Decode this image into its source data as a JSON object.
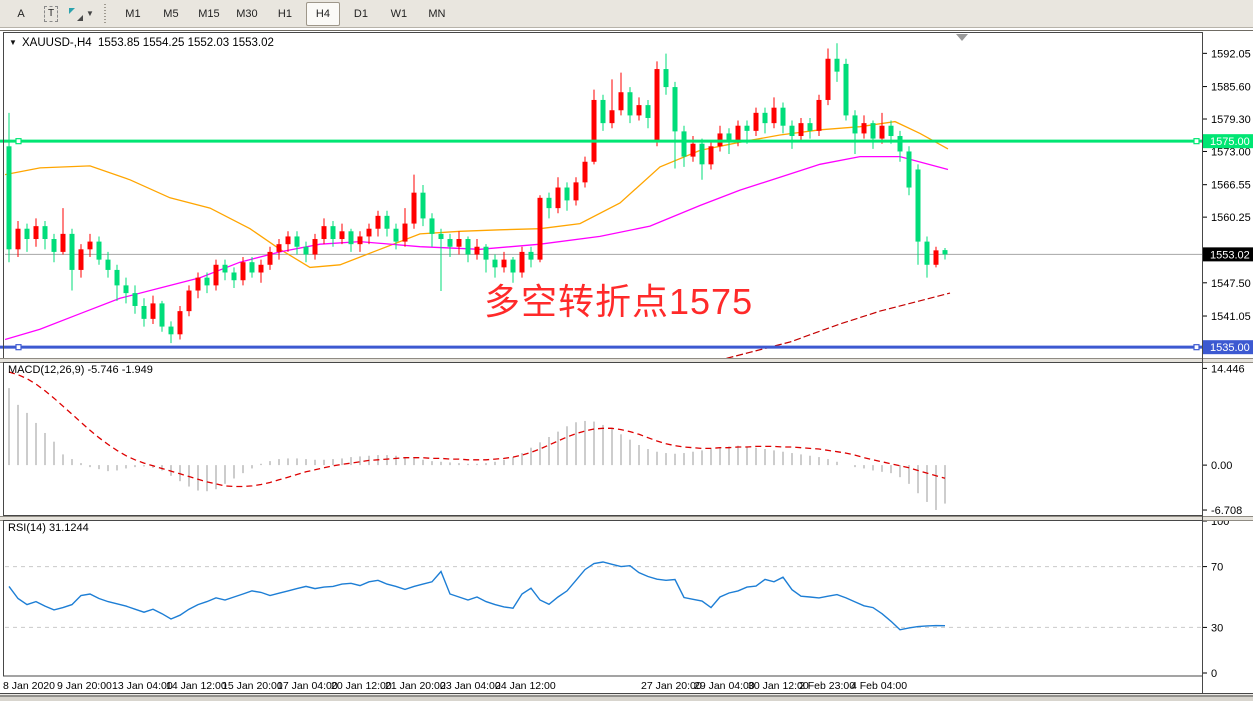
{
  "toolbar": {
    "buttons_left": [
      {
        "label": "A"
      },
      {
        "label": "T"
      }
    ],
    "timeframes": [
      "M1",
      "M5",
      "M15",
      "M30",
      "H1",
      "H4",
      "D1",
      "W1",
      "MN"
    ],
    "active_timeframe": "H4"
  },
  "header": {
    "collapse_icon": "▼",
    "title": "XAUUSD-,H4  1553.85 1554.25 1552.03 1553.02"
  },
  "annotation": {
    "text": "多空转折点1575"
  },
  "colors": {
    "bull": "#ff0000",
    "bear": "#00dd7a",
    "hline_green": "#00e673",
    "hline_blue": "#3c59d1",
    "current_price_line": "#a6a6a6",
    "ma_orange": "#ffa500",
    "ma_magenta": "#ff00ff",
    "ma_darkred": "#c40000",
    "macd_hist": "#ababab",
    "macd_signal": "#dd0000",
    "rsi_line": "#1d7ed5",
    "rsi_level": "#c9c9c9",
    "tag_black": "#000000",
    "annotation": "#ff2a2a",
    "marker_gray": "#9a9a9a"
  },
  "chart_data": {
    "type": "candlestick+indicators",
    "symbol": "XAUUSD-",
    "timeframe": "H4",
    "ohlc_header": {
      "open": "1553.85",
      "high": "1554.25",
      "low": "1552.03",
      "close": "1553.02"
    },
    "main": {
      "x0": 9,
      "dx": 9,
      "ylim": [
        1532.9,
        1596.0
      ],
      "axis_ticks": [
        "1592.05",
        "1585.60",
        "1579.30",
        "1573.00",
        "1566.55",
        "1560.25",
        "1547.50",
        "1541.05"
      ],
      "hline_green": {
        "price": 1575.0,
        "label": "1575.00"
      },
      "hline_blue": {
        "price": 1535.0,
        "label": "1535.00"
      },
      "current_price": {
        "price": 1553.02,
        "label": "1553.02"
      },
      "shift_marker_x": 962,
      "candles": [
        [
          1574,
          1580.5,
          1551.5,
          1554
        ],
        [
          1554,
          1559.5,
          1552.5,
          1558
        ],
        [
          1558,
          1559,
          1553.5,
          1556
        ],
        [
          1556,
          1560,
          1554.5,
          1558.5
        ],
        [
          1558.5,
          1559.5,
          1554,
          1556
        ],
        [
          1556,
          1557,
          1551.5,
          1553.5
        ],
        [
          1553.5,
          1562,
          1553,
          1557
        ],
        [
          1557,
          1558,
          1546,
          1550
        ],
        [
          1550,
          1555,
          1548.5,
          1554
        ],
        [
          1554,
          1557,
          1552.5,
          1555.5
        ],
        [
          1555.5,
          1556.5,
          1551,
          1552
        ],
        [
          1552,
          1553.5,
          1548.5,
          1550
        ],
        [
          1550,
          1551,
          1544,
          1547
        ],
        [
          1547,
          1548.5,
          1543.5,
          1545.5
        ],
        [
          1545.5,
          1547,
          1541.5,
          1543
        ],
        [
          1543,
          1544.5,
          1539,
          1540.5
        ],
        [
          1540.5,
          1545,
          1539.5,
          1543.5
        ],
        [
          1543.5,
          1544,
          1538,
          1539
        ],
        [
          1539,
          1540,
          1535.8,
          1537.5
        ],
        [
          1537.5,
          1543,
          1536.5,
          1542
        ],
        [
          1542,
          1547,
          1541,
          1546
        ],
        [
          1546,
          1549.5,
          1544.5,
          1548.5
        ],
        [
          1548.5,
          1549.5,
          1545.5,
          1547
        ],
        [
          1547,
          1552,
          1546,
          1551
        ],
        [
          1551,
          1552,
          1548,
          1549.5
        ],
        [
          1549.5,
          1550.5,
          1546.5,
          1548
        ],
        [
          1548,
          1552.5,
          1547,
          1551.5
        ],
        [
          1551.5,
          1552.5,
          1548.5,
          1549.5
        ],
        [
          1549.5,
          1552,
          1547.5,
          1551
        ],
        [
          1551,
          1554.5,
          1550,
          1553.5
        ],
        [
          1553.5,
          1556,
          1552,
          1555
        ],
        [
          1555,
          1557.5,
          1553.5,
          1556.5
        ],
        [
          1556.5,
          1557.5,
          1553,
          1554.5
        ],
        [
          1554.5,
          1555.5,
          1551.5,
          1553
        ],
        [
          1553,
          1557,
          1552,
          1556
        ],
        [
          1556,
          1560,
          1555,
          1558.5
        ],
        [
          1558.5,
          1559.5,
          1554.5,
          1556
        ],
        [
          1556,
          1559,
          1555,
          1557.5
        ],
        [
          1557.5,
          1558,
          1553.5,
          1555
        ],
        [
          1555,
          1557.5,
          1553.5,
          1556.5
        ],
        [
          1556.5,
          1559,
          1555,
          1558
        ],
        [
          1558,
          1561.5,
          1556.5,
          1560.5
        ],
        [
          1560.5,
          1561.5,
          1556.5,
          1558
        ],
        [
          1558,
          1559,
          1554,
          1555.5
        ],
        [
          1555.5,
          1562,
          1554.5,
          1559
        ],
        [
          1559,
          1568.5,
          1558,
          1565
        ],
        [
          1565,
          1566.5,
          1558.5,
          1560
        ],
        [
          1560,
          1561,
          1554.5,
          1557
        ],
        [
          1557,
          1558,
          1545.9,
          1556
        ],
        [
          1556,
          1557,
          1552.5,
          1554.5
        ],
        [
          1554.5,
          1557.5,
          1553,
          1556
        ],
        [
          1556,
          1556.5,
          1551.5,
          1553
        ],
        [
          1553,
          1556,
          1552,
          1554.5
        ],
        [
          1554.5,
          1555,
          1549.5,
          1552
        ],
        [
          1552,
          1553,
          1548.5,
          1550.5
        ],
        [
          1550.5,
          1553.5,
          1549.5,
          1552
        ],
        [
          1552,
          1552.5,
          1547.5,
          1549.5
        ],
        [
          1549.5,
          1554.5,
          1548.5,
          1553.5
        ],
        [
          1553.5,
          1554.5,
          1550.5,
          1552
        ],
        [
          1552,
          1564.5,
          1551.5,
          1564
        ],
        [
          1564,
          1565,
          1560,
          1562
        ],
        [
          1562,
          1568,
          1561,
          1566
        ],
        [
          1566,
          1567,
          1561.5,
          1563.5
        ],
        [
          1563.5,
          1568,
          1562.5,
          1567
        ],
        [
          1567,
          1572,
          1566,
          1571
        ],
        [
          1571,
          1585,
          1570.5,
          1583
        ],
        [
          1583,
          1584,
          1577,
          1578.5
        ],
        [
          1578.5,
          1587,
          1577.5,
          1581
        ],
        [
          1581,
          1588.3,
          1580,
          1584.5
        ],
        [
          1584.5,
          1585.5,
          1578.5,
          1580
        ],
        [
          1580,
          1583.5,
          1579,
          1582
        ],
        [
          1582,
          1583,
          1577.5,
          1579.5
        ],
        [
          1575,
          1590.5,
          1574,
          1589
        ],
        [
          1589,
          1592,
          1584,
          1585.5
        ],
        [
          1585.5,
          1586.5,
          1569.7,
          1576.9
        ],
        [
          1576.9,
          1578,
          1570,
          1572
        ],
        [
          1572,
          1576,
          1571,
          1574.5
        ],
        [
          1574.5,
          1575.5,
          1567.5,
          1570.5
        ],
        [
          1570.5,
          1575,
          1569.5,
          1574
        ],
        [
          1574,
          1578,
          1573,
          1576.5
        ],
        [
          1576.5,
          1577.5,
          1572.5,
          1575
        ],
        [
          1575,
          1579,
          1574,
          1578
        ],
        [
          1578,
          1579,
          1574.5,
          1577
        ],
        [
          1577,
          1581.5,
          1576,
          1580.5
        ],
        [
          1580.5,
          1581.5,
          1576.5,
          1578.5
        ],
        [
          1578.5,
          1583.5,
          1577.5,
          1581.5
        ],
        [
          1581.5,
          1582.5,
          1576.5,
          1578
        ],
        [
          1578,
          1579,
          1573.5,
          1576
        ],
        [
          1576,
          1579.5,
          1575,
          1578.5
        ],
        [
          1578.5,
          1579.5,
          1575.5,
          1577
        ],
        [
          1577,
          1584,
          1576,
          1583
        ],
        [
          1583,
          1593,
          1582,
          1591
        ],
        [
          1591,
          1594,
          1586.5,
          1588.5
        ],
        [
          1590,
          1591,
          1579,
          1580
        ],
        [
          1580,
          1581,
          1572.5,
          1576.5
        ],
        [
          1576.5,
          1580,
          1575.5,
          1578.5
        ],
        [
          1578.5,
          1579,
          1573.5,
          1575.5
        ],
        [
          1575.5,
          1580.5,
          1574.5,
          1578
        ],
        [
          1578,
          1579,
          1574.5,
          1576
        ],
        [
          1576,
          1577,
          1571,
          1573
        ],
        [
          1573,
          1574,
          1564.5,
          1566
        ],
        [
          1569.5,
          1570.5,
          1551,
          1555.5
        ],
        [
          1555.5,
          1556.5,
          1548.5,
          1551
        ],
        [
          1551,
          1554.5,
          1550.5,
          1553.8
        ],
        [
          1553.85,
          1554.25,
          1552.03,
          1553.02
        ]
      ],
      "ma_orange": [
        [
          5,
          1568.5
        ],
        [
          40,
          1569.8
        ],
        [
          90,
          1570.2
        ],
        [
          130,
          1567.5
        ],
        [
          170,
          1564
        ],
        [
          210,
          1562
        ],
        [
          250,
          1558
        ],
        [
          280,
          1554
        ],
        [
          310,
          1550.5
        ],
        [
          340,
          1551
        ],
        [
          380,
          1554
        ],
        [
          420,
          1557
        ],
        [
          460,
          1557.5
        ],
        [
          500,
          1557.8
        ],
        [
          540,
          1558
        ],
        [
          580,
          1559
        ],
        [
          620,
          1563
        ],
        [
          660,
          1570
        ],
        [
          700,
          1573.2
        ],
        [
          740,
          1574.8
        ],
        [
          780,
          1576.2
        ],
        [
          820,
          1577.2
        ],
        [
          860,
          1577.8
        ],
        [
          895,
          1578.8
        ],
        [
          920,
          1576.5
        ],
        [
          948,
          1573.5
        ]
      ],
      "ma_magenta": [
        [
          5,
          1536.5
        ],
        [
          40,
          1538.5
        ],
        [
          80,
          1541.5
        ],
        [
          120,
          1544.5
        ],
        [
          160,
          1546.5
        ],
        [
          200,
          1548.5
        ],
        [
          240,
          1551.5
        ],
        [
          280,
          1553.5
        ],
        [
          320,
          1555
        ],
        [
          360,
          1555.5
        ],
        [
          420,
          1554.5
        ],
        [
          480,
          1554
        ],
        [
          540,
          1555
        ],
        [
          600,
          1556.5
        ],
        [
          650,
          1558.5
        ],
        [
          700,
          1562.5
        ],
        [
          740,
          1565.5
        ],
        [
          780,
          1568
        ],
        [
          820,
          1570.5
        ],
        [
          860,
          1572
        ],
        [
          900,
          1572
        ],
        [
          948,
          1569.5
        ]
      ],
      "ma_darkred": [
        [
          640,
          1528
        ],
        [
          700,
          1531.5
        ],
        [
          750,
          1534
        ],
        [
          790,
          1536
        ],
        [
          840,
          1539.5
        ],
        [
          880,
          1542
        ],
        [
          920,
          1544
        ],
        [
          950,
          1545.5
        ]
      ]
    },
    "macd": {
      "label": "MACD(12,26,9) -5.746 -1.949",
      "params": "12,26,9",
      "macd_value": -5.746,
      "signal_value": -1.949,
      "ylim": [
        -7.6,
        15.4
      ],
      "axis_ticks": [
        "14.446",
        "0.00",
        "-6.708"
      ],
      "hist": [
        11.5,
        9.0,
        7.8,
        6.3,
        4.8,
        3.5,
        1.6,
        0.9,
        0.3,
        -0.3,
        -0.6,
        -0.9,
        -0.8,
        -0.5,
        -0.3,
        -0.2,
        -0.4,
        -0.8,
        -1.6,
        -2.4,
        -3.2,
        -3.8,
        -3.9,
        -3.6,
        -2.8,
        -2.0,
        -1.2,
        -0.5,
        0.2,
        0.6,
        0.9,
        1.0,
        1.0,
        0.9,
        0.8,
        0.8,
        0.9,
        1.0,
        1.2,
        1.3,
        1.4,
        1.5,
        1.5,
        1.4,
        1.2,
        1.0,
        0.8,
        0.6,
        0.5,
        0.4,
        0.3,
        0.2,
        0.2,
        0.3,
        0.5,
        0.8,
        1.2,
        1.8,
        2.6,
        3.4,
        4.2,
        5.0,
        5.8,
        6.4,
        6.6,
        6.5,
        6.0,
        5.4,
        4.6,
        3.8,
        3.0,
        2.4,
        2.0,
        1.8,
        1.7,
        1.8,
        2.0,
        2.2,
        2.4,
        2.6,
        2.8,
        2.9,
        2.8,
        2.6,
        2.4,
        2.2,
        2.0,
        1.8,
        1.6,
        1.4,
        1.2,
        0.9,
        0.5,
        0.0,
        -0.3,
        -0.5,
        -0.8,
        -1.0,
        -1.2,
        -1.8,
        -2.8,
        -4.2,
        -5.5,
        -6.7,
        -5.746
      ],
      "signal": [
        13.9,
        13.5,
        12.9,
        12.1,
        11.1,
        10.0,
        8.8,
        7.6,
        6.4,
        5.2,
        4.1,
        3.1,
        2.2,
        1.4,
        0.8,
        0.3,
        -0.1,
        -0.5,
        -0.9,
        -1.3,
        -1.7,
        -2.1,
        -2.5,
        -2.8,
        -3.1,
        -3.2,
        -3.2,
        -3.1,
        -2.9,
        -2.6,
        -2.2,
        -1.8,
        -1.4,
        -1.0,
        -0.7,
        -0.4,
        -0.1,
        0.1,
        0.3,
        0.5,
        0.7,
        0.8,
        0.9,
        1.0,
        1.1,
        1.1,
        1.1,
        1.0,
        1.0,
        0.9,
        0.9,
        0.8,
        0.8,
        0.8,
        0.9,
        1.0,
        1.2,
        1.5,
        1.9,
        2.4,
        3.0,
        3.6,
        4.2,
        4.7,
        5.1,
        5.4,
        5.5,
        5.5,
        5.3,
        5.0,
        4.6,
        4.1,
        3.6,
        3.2,
        2.9,
        2.7,
        2.6,
        2.5,
        2.5,
        2.6,
        2.6,
        2.7,
        2.7,
        2.8,
        2.8,
        2.8,
        2.7,
        2.7,
        2.6,
        2.5,
        2.4,
        2.2,
        2.0,
        1.8,
        1.5,
        1.1,
        0.8,
        0.5,
        0.2,
        -0.1,
        -0.4,
        -0.8,
        -1.2,
        -1.6,
        -1.949
      ]
    },
    "rsi": {
      "label": "RSI(14) 31.1244",
      "period": 14,
      "value": 31.1244,
      "ylim": [
        0,
        100
      ],
      "axis_ticks": [
        "100",
        "70",
        "30",
        "0"
      ],
      "levels": [
        70,
        30
      ],
      "series": [
        57,
        49,
        45,
        47,
        44,
        41.5,
        43,
        45,
        51,
        52,
        49,
        47,
        45.5,
        44,
        42,
        40,
        42,
        39,
        35.5,
        38,
        42,
        45,
        47,
        49.5,
        48,
        50,
        52,
        54,
        53,
        51,
        52.5,
        54,
        55.5,
        57,
        55.5,
        56.5,
        57,
        58.5,
        59,
        57.5,
        60,
        61,
        58.5,
        57,
        55,
        57,
        58.5,
        60,
        66.8,
        52,
        50,
        48,
        50,
        47,
        45,
        43.5,
        42.6,
        52,
        55.8,
        48,
        45.2,
        50,
        54,
        61,
        68,
        72,
        73,
        71.5,
        70,
        70.6,
        66,
        63.5,
        61.7,
        61,
        61.5,
        49.7,
        48.5,
        47.4,
        43,
        50,
        52.6,
        54,
        56.5,
        57.2,
        61.6,
        60,
        63,
        54.8,
        50.5,
        50,
        49.4,
        50.5,
        51.6,
        49.4,
        46.8,
        44.2,
        43,
        39,
        34,
        28.4,
        29.7,
        30.5,
        31,
        31.2,
        31.1
      ]
    },
    "x_axis": {
      "labels": [
        [
          "8 Jan 2020",
          3
        ],
        [
          "9 Jan 20:00",
          57
        ],
        [
          "13 Jan 04:00",
          112
        ],
        [
          "14 Jan 12:00",
          166
        ],
        [
          "15 Jan 20:00",
          222
        ],
        [
          "17 Jan 04:00",
          277
        ],
        [
          "20 Jan 12:00",
          331
        ],
        [
          "21 Jan 20:00",
          385
        ],
        [
          "23 Jan 04:00",
          440
        ],
        [
          "24 Jan 12:00",
          495
        ],
        [
          "27 Jan 20:00",
          641
        ],
        [
          "29 Jan 04:00",
          694
        ],
        [
          "30 Jan 12:00",
          748
        ],
        [
          "2 Feb 23:00",
          799
        ],
        [
          "4 Feb 04:00",
          851
        ]
      ]
    }
  }
}
